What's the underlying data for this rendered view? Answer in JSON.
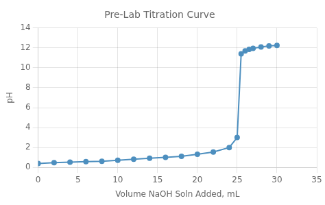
{
  "chart_data": {
    "type": "line",
    "title": "Pre-Lab Titration Curve",
    "xlabel": "Volume NaOH Soln Added, mL",
    "ylabel": "pH",
    "x": [
      0,
      2,
      4,
      6,
      8,
      10,
      12,
      14,
      16,
      18,
      20,
      22,
      24,
      25,
      25.5,
      26,
      26.5,
      27,
      28,
      29,
      30
    ],
    "values": [
      0.4,
      0.47,
      0.53,
      0.58,
      0.62,
      0.72,
      0.82,
      0.92,
      1.02,
      1.12,
      1.32,
      1.55,
      2.0,
      3.0,
      11.4,
      11.7,
      11.85,
      11.95,
      12.1,
      12.2,
      12.25
    ],
    "color": "#4d8fbf",
    "marker": "circle",
    "xlim": [
      0,
      35
    ],
    "ylim": [
      0,
      14
    ],
    "xticks": [
      0,
      5,
      10,
      15,
      20,
      25,
      30,
      35
    ],
    "yticks": [
      0,
      2,
      4,
      6,
      8,
      10,
      12,
      14
    ],
    "grid": true
  }
}
